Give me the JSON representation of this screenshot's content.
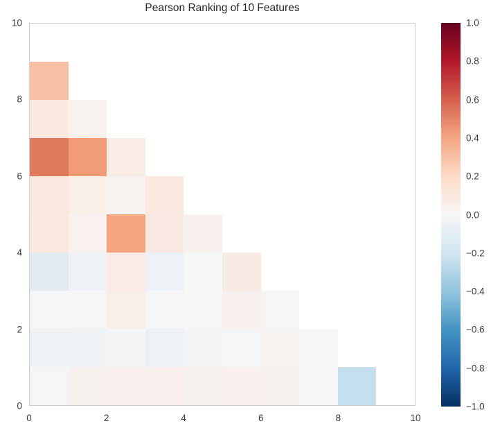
{
  "title": "Pearson Ranking of 10 Features",
  "chart_data": {
    "type": "heatmap",
    "title": "Pearson Ranking of 10 Features",
    "xlabel": "",
    "ylabel": "",
    "xlim": [
      0,
      10
    ],
    "ylim": [
      0,
      10
    ],
    "x_ticks": [
      0,
      2,
      4,
      6,
      8,
      10
    ],
    "y_ticks": [
      0,
      2,
      4,
      6,
      8,
      10
    ],
    "grid": false,
    "shape": "lower-triangular, 45 cells, cell size 1x1 data units",
    "colormap": "RdBu",
    "rows": [
      {
        "y": 8,
        "values": [
          0.3
        ],
        "colors": [
          "#f7c0a4"
        ]
      },
      {
        "y": 7,
        "values": [
          0.08,
          0.03
        ],
        "colors": [
          "#faeae2",
          "#f8f2ee"
        ]
      },
      {
        "y": 6,
        "values": [
          0.53,
          0.43,
          0.07
        ],
        "colors": [
          "#e07a5c",
          "#f09c77",
          "#f8ece5"
        ]
      },
      {
        "y": 5,
        "values": [
          0.09,
          0.05,
          0.02,
          0.09
        ],
        "colors": [
          "#f9e8e0",
          "#f9efe9",
          "#f8f2ee",
          "#f9e9e1"
        ]
      },
      {
        "y": 4,
        "values": [
          0.08,
          0.04,
          0.4,
          0.08,
          0.04
        ],
        "colors": [
          "#f9e9e1",
          "#f8f1ed",
          "#f4a67e",
          "#f9e9e2",
          "#f8f0ec"
        ]
      },
      {
        "y": 3,
        "values": [
          -0.13,
          -0.04,
          0.06,
          -0.05,
          0.0,
          0.07
        ],
        "colors": [
          "#e2eaf2",
          "#eef2f5",
          "#f9ece7",
          "#ecf1f6",
          "#f5f6f6",
          "#f8ebe3"
        ]
      },
      {
        "y": 2,
        "values": [
          -0.01,
          0.0,
          0.05,
          -0.01,
          0.0,
          0.03,
          0.01
        ],
        "colors": [
          "#f3f5f6",
          "#f4f5f5",
          "#f8eee9",
          "#f4f5f6",
          "#f5f6f6",
          "#f7f0ec",
          "#f5f5f4"
        ]
      },
      {
        "y": 1,
        "values": [
          -0.05,
          -0.05,
          -0.01,
          -0.06,
          -0.02,
          -0.02,
          0.02,
          0.0
        ],
        "colors": [
          "#edf1f4",
          "#eef2f5",
          "#f3f4f5",
          "#ecf1f5",
          "#f2f4f6",
          "#f4f5f7",
          "#f6f2ef",
          "#f4f6f5"
        ]
      },
      {
        "y": 0,
        "values": [
          -0.01,
          0.03,
          0.04,
          0.04,
          0.03,
          0.04,
          0.03,
          0.0,
          -0.25
        ],
        "colors": [
          "#f4f5f6",
          "#f6f1ee",
          "#f7f0ec",
          "#f8efec",
          "#f6f0ed",
          "#f7f0ed",
          "#f7f1ed",
          "#f5f5f5",
          "#c5dfee"
        ]
      }
    ],
    "colorbar": {
      "position": "right",
      "vmin": -1.0,
      "vmax": 1.0,
      "tick_labels": [
        "1.0",
        "0.8",
        "0.6",
        "0.4",
        "0.2",
        "0.0",
        "−0.2",
        "−0.4",
        "−0.6",
        "−0.8",
        "−1.0"
      ],
      "tick_values": [
        1.0,
        0.8,
        0.6,
        0.4,
        0.2,
        0.0,
        -0.2,
        -0.4,
        -0.6,
        -0.8,
        -1.0
      ],
      "gradient_top_to_bottom": [
        "#67001f",
        "#b2182b",
        "#d6604d",
        "#f4a582",
        "#fddbc7",
        "#f7f7f7",
        "#d1e5f0",
        "#92c5de",
        "#4393c3",
        "#2166ac",
        "#053061"
      ]
    },
    "text_color": "#3b3b3b",
    "plot_border_color": "#cccccc"
  }
}
